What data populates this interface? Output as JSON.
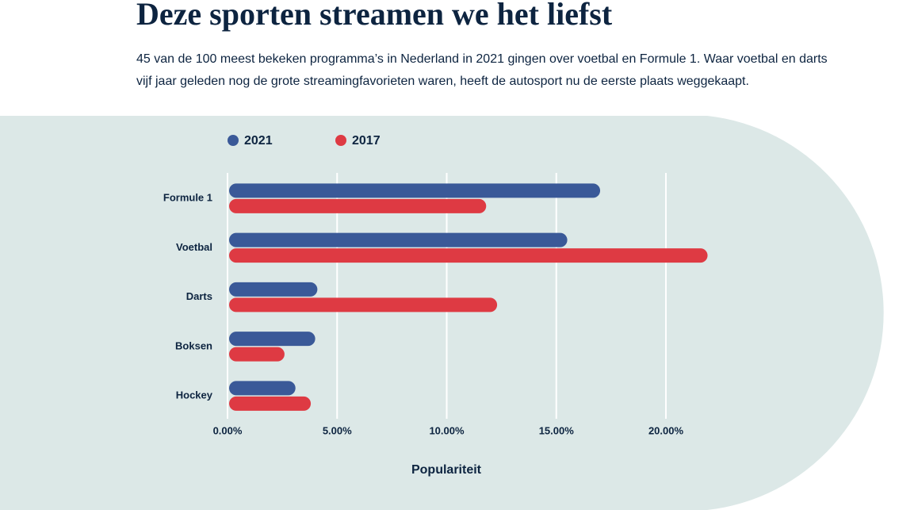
{
  "chart_data": {
    "type": "bar",
    "orientation": "horizontal",
    "title": "Deze sporten streamen we het liefst",
    "subtitle": "45 van de 100 meest bekeken programma’s in Nederland in 2021 gingen over voetbal en Formule 1. Waar voetbal en darts vijf jaar geleden nog de grote streamingfavorieten waren, heeft de autosport nu de eerste plaats weggekaapt.",
    "categories": [
      "Formule 1",
      "Voetbal",
      "Darts",
      "Boksen",
      "Hockey"
    ],
    "series": [
      {
        "name": "2021",
        "color": "#3a5998",
        "values": [
          17.0,
          15.5,
          4.1,
          4.0,
          3.1
        ]
      },
      {
        "name": "2017",
        "color": "#de3a43",
        "values": [
          11.8,
          21.9,
          12.3,
          2.6,
          3.8
        ]
      }
    ],
    "xlim": [
      0,
      22
    ],
    "xticks": [
      {
        "value": 0,
        "label": "0.00%"
      },
      {
        "value": 5,
        "label": "5.00%"
      },
      {
        "value": 10,
        "label": "10.00%"
      },
      {
        "value": 15,
        "label": "15.00%"
      },
      {
        "value": 20,
        "label": "20.00%"
      }
    ],
    "x_label": "Populariteit",
    "grid": true,
    "legend": "top-left"
  }
}
